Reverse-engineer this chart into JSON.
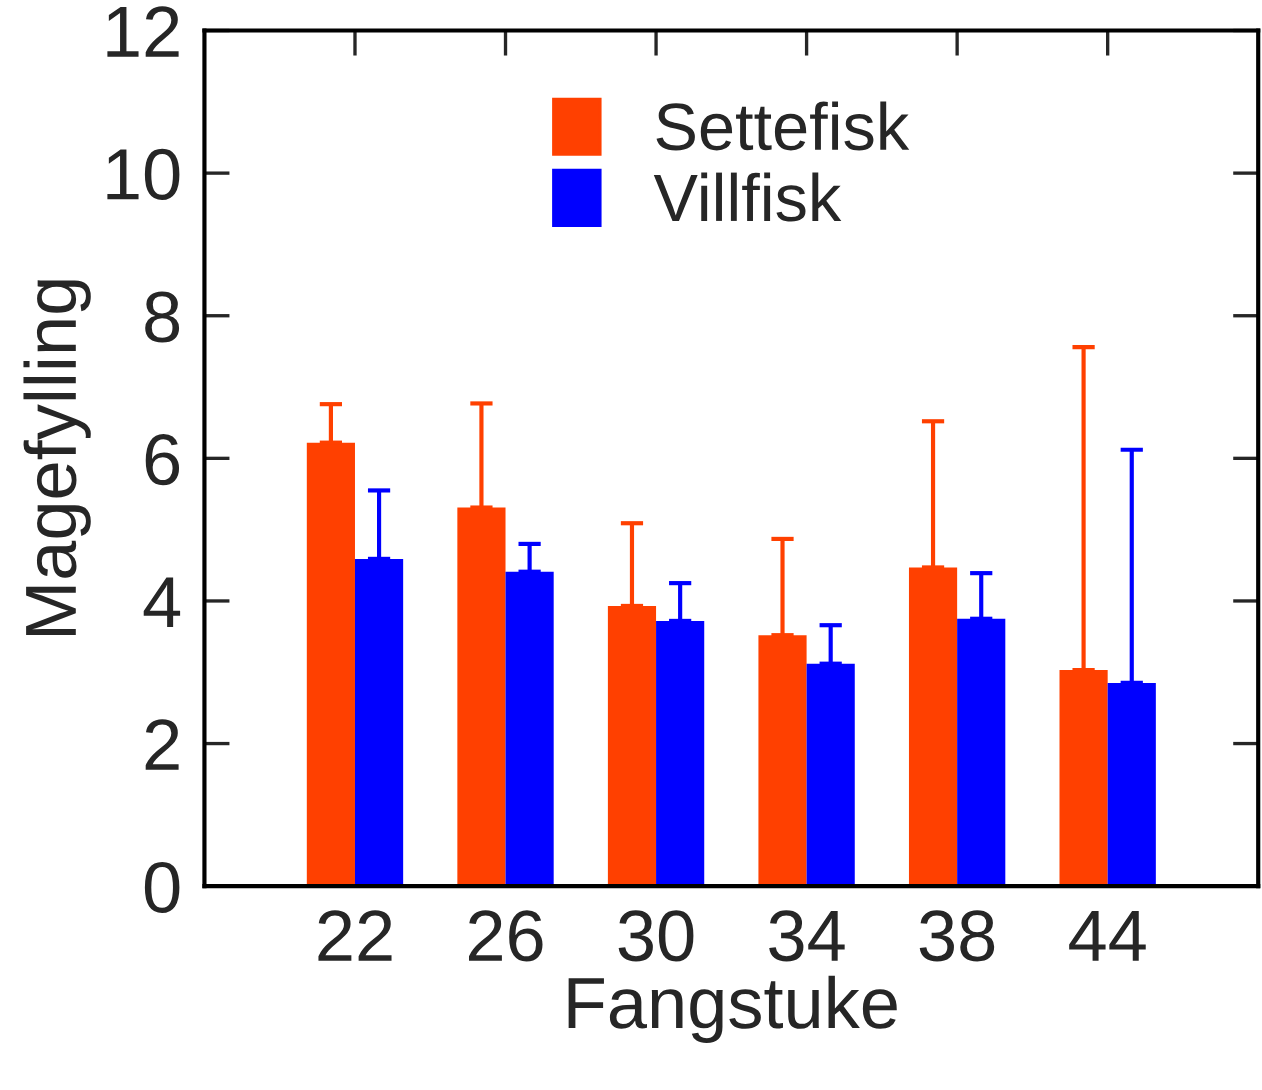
{
  "chart_data": {
    "type": "bar",
    "xlabel": "Fangstuke",
    "ylabel": "Magefylling",
    "categories": [
      "22",
      "26",
      "30",
      "34",
      "38",
      "44"
    ],
    "series": [
      {
        "name": "Settefisk",
        "color": "#ff4000",
        "values": [
          6.22,
          5.31,
          3.93,
          3.52,
          4.47,
          3.03
        ],
        "errors": [
          [
            6.22,
            6.76
          ],
          [
            5.31,
            6.77
          ],
          [
            3.93,
            5.09
          ],
          [
            3.52,
            4.87
          ],
          [
            4.47,
            6.52
          ],
          [
            3.03,
            7.56
          ]
        ]
      },
      {
        "name": "Villfisk",
        "color": "#0000ff",
        "values": [
          4.59,
          4.41,
          3.72,
          3.12,
          3.75,
          2.85
        ],
        "errors": [
          [
            4.59,
            5.55
          ],
          [
            4.41,
            4.8
          ],
          [
            3.72,
            4.25
          ],
          [
            3.12,
            3.66
          ],
          [
            3.75,
            4.39
          ],
          [
            2.85,
            6.12
          ]
        ]
      }
    ],
    "ylim": [
      0,
      12
    ],
    "yticks": [
      0,
      2,
      4,
      6,
      8,
      10,
      12
    ],
    "grid": false,
    "legend": "top"
  }
}
